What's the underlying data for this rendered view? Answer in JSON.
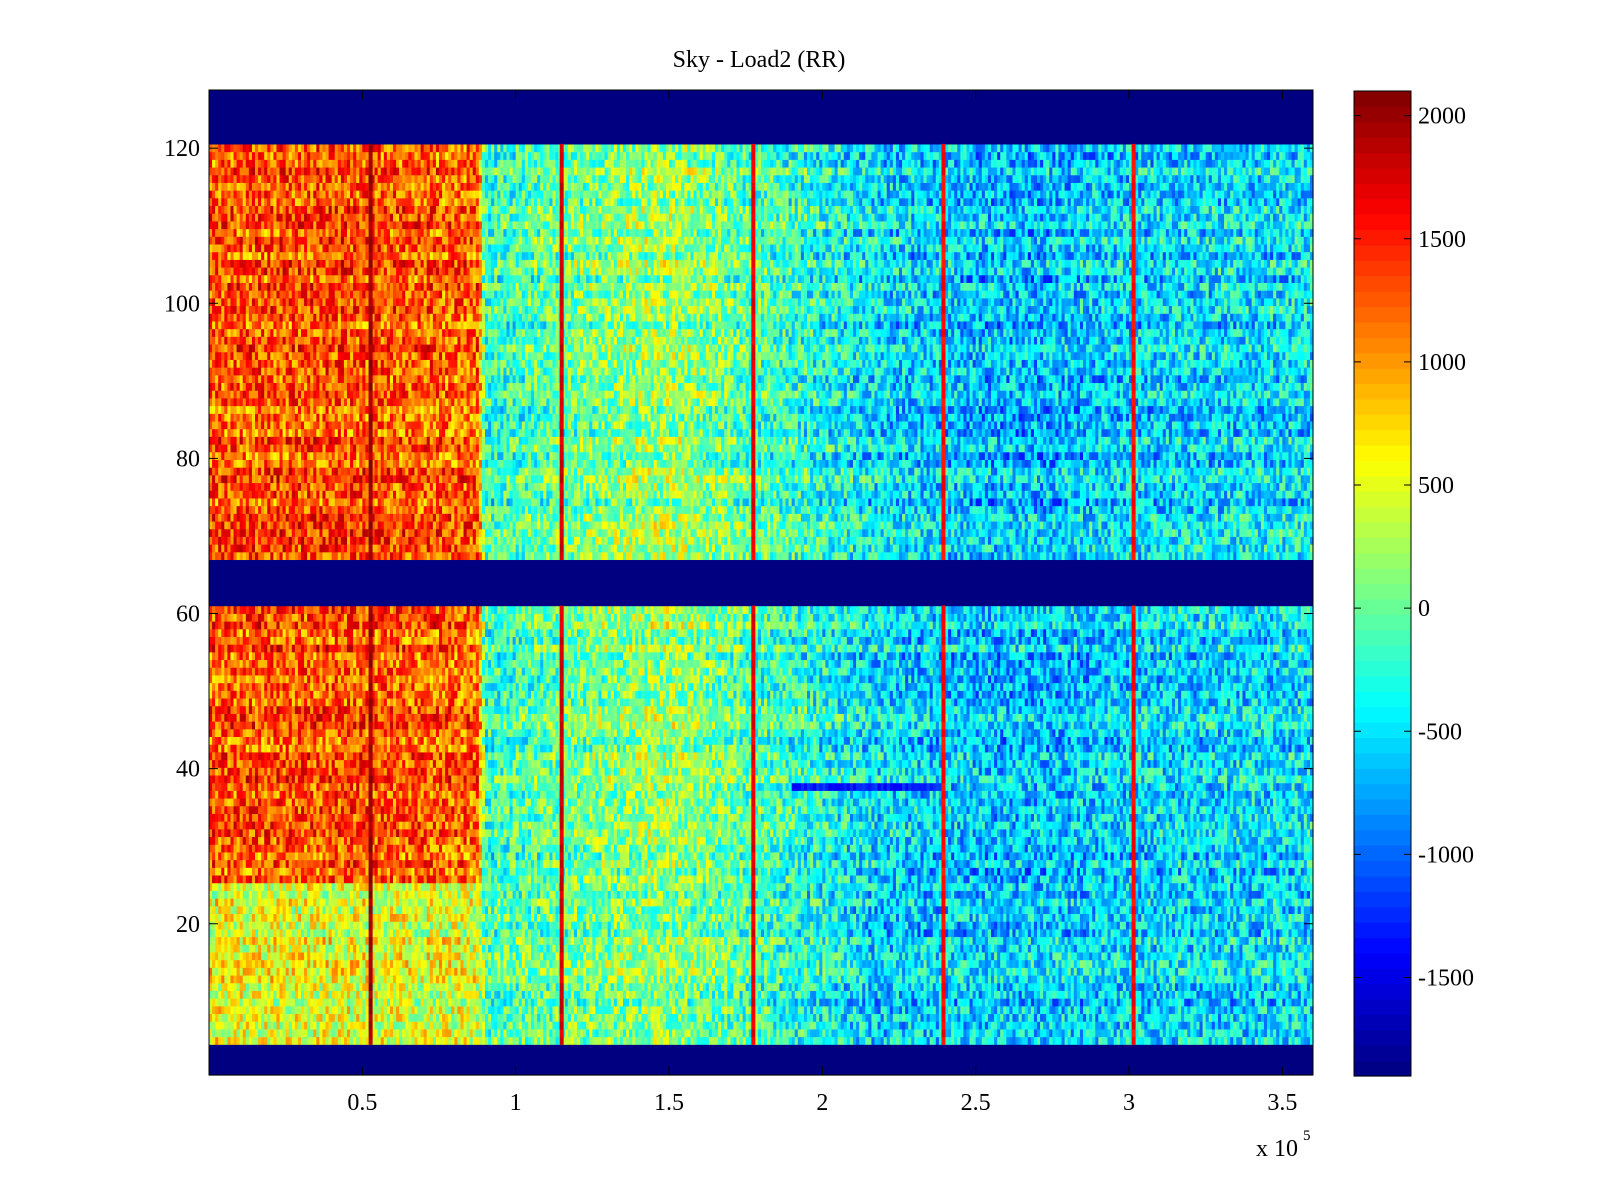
{
  "chart_data": {
    "type": "heatmap",
    "title": "Sky - Load2 (RR)",
    "xlabel": "",
    "ylabel": "",
    "x_multiplier": {
      "base": "x 10",
      "exponent": "5"
    },
    "xlim": [
      0,
      3.6
    ],
    "ylim": [
      1,
      128
    ],
    "x_ticks": [
      {
        "value": 0.5,
        "label": "0.5"
      },
      {
        "value": 1,
        "label": "1"
      },
      {
        "value": 1.5,
        "label": "1.5"
      },
      {
        "value": 2,
        "label": "2"
      },
      {
        "value": 2.5,
        "label": "2.5"
      },
      {
        "value": 3,
        "label": "3"
      },
      {
        "value": 3.5,
        "label": "3.5"
      }
    ],
    "y_ticks": [
      {
        "value": 20,
        "label": "20"
      },
      {
        "value": 40,
        "label": "40"
      },
      {
        "value": 60,
        "label": "60"
      },
      {
        "value": 80,
        "label": "80"
      },
      {
        "value": 100,
        "label": "100"
      },
      {
        "value": 120,
        "label": "120"
      }
    ],
    "colormap": "jet",
    "color_limits": [
      -1900,
      2100
    ],
    "colorbar_ticks": [
      {
        "value": 2000,
        "label": "2000"
      },
      {
        "value": 1500,
        "label": "1500"
      },
      {
        "value": 1000,
        "label": "1000"
      },
      {
        "value": 500,
        "label": "500"
      },
      {
        "value": 0,
        "label": "0"
      },
      {
        "value": -500,
        "label": "-500"
      },
      {
        "value": -1000,
        "label": "-1000"
      },
      {
        "value": -1500,
        "label": "-1500"
      }
    ],
    "flagged_channel_ranges": [
      [
        1,
        4
      ],
      [
        62,
        67
      ],
      [
        122,
        128
      ]
    ],
    "trend_profile": [
      {
        "x": 0.0,
        "value": 1250
      },
      {
        "x": 0.4,
        "value": 1300
      },
      {
        "x": 0.88,
        "value": 1200
      },
      {
        "x": 0.9,
        "value": -200
      },
      {
        "x": 1.2,
        "value": 50
      },
      {
        "x": 1.5,
        "value": 250
      },
      {
        "x": 1.8,
        "value": -100
      },
      {
        "x": 2.2,
        "value": -500
      },
      {
        "x": 2.6,
        "value": -650
      },
      {
        "x": 3.0,
        "value": -550
      },
      {
        "x": 3.6,
        "value": -450
      }
    ],
    "lower_band_channels": [
      4,
      25
    ],
    "lower_band_profile": [
      {
        "x": 0.0,
        "value": 500
      },
      {
        "x": 0.88,
        "value": 450
      },
      {
        "x": 0.9,
        "value": -100
      },
      {
        "x": 1.5,
        "value": 150
      },
      {
        "x": 2.2,
        "value": -600
      },
      {
        "x": 3.6,
        "value": -500
      }
    ],
    "spike_columns": [
      {
        "x": 0.527,
        "value": 2100
      },
      {
        "x": 1.15,
        "value": 1900
      },
      {
        "x": 1.775,
        "value": 1800
      },
      {
        "x": 2.395,
        "value": 1700
      },
      {
        "x": 3.015,
        "value": 1700
      }
    ],
    "horizontal_feature": {
      "channel": 38,
      "x_range": [
        1.9,
        2.4
      ],
      "value": -1300
    }
  }
}
